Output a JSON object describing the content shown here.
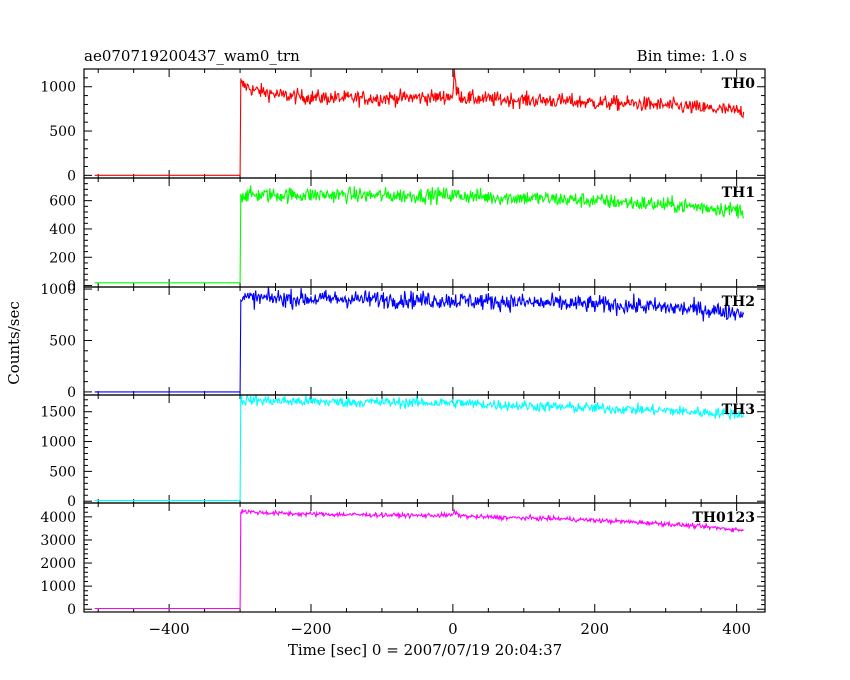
{
  "header": {
    "left": "ae070719200437_wam0_trn",
    "right": "Bin time: 1.0 s"
  },
  "y_axis_label": "Counts/sec",
  "chart_data": {
    "type": "line",
    "xlabel": "Time [sec] 0 = 2007/07/19 20:04:37",
    "xlim": [
      -520,
      440
    ],
    "x_ticks": [
      -400,
      -200,
      0,
      200,
      400
    ],
    "x_tick_labels": [
      "−400",
      "−200",
      "0",
      "200",
      "400"
    ],
    "panels": [
      {
        "name": "TH0",
        "color": "#ff0000",
        "ylim": [
          -30,
          1200
        ],
        "yticks": [
          0,
          500,
          1000
        ],
        "ytick_labels": [
          "0",
          "500",
          "1000"
        ],
        "series": [
          {
            "name": "TH0",
            "x": [
              -505,
              -300,
              -299,
              -298,
              -290,
              -280,
              -260,
              -240,
              -200,
              -150,
              -100,
              -50,
              -20,
              0,
              2,
              5,
              10,
              20,
              50,
              100,
              150,
              200,
              250,
              300,
              350,
              380,
              410
            ],
            "y": [
              0,
              0,
              1050,
              1020,
              1000,
              960,
              930,
              900,
              880,
              870,
              870,
              880,
              880,
              900,
              1180,
              960,
              900,
              870,
              860,
              850,
              840,
              820,
              810,
              790,
              760,
              740,
              720
            ]
          }
        ]
      },
      {
        "name": "TH1",
        "color": "#00ff00",
        "ylim": [
          -10,
          760
        ],
        "yticks": [
          0,
          200,
          400,
          600
        ],
        "ytick_labels": [
          "0",
          "200",
          "400",
          "600"
        ],
        "series": [
          {
            "name": "TH1",
            "x": [
              -505,
              -300,
              -299,
              -280,
              -250,
              -200,
              -150,
              -100,
              -50,
              0,
              50,
              100,
              150,
              200,
              250,
              300,
              350,
              410
            ],
            "y": [
              20,
              20,
              640,
              640,
              640,
              640,
              640,
              635,
              635,
              640,
              625,
              620,
              610,
              600,
              585,
              570,
              555,
              530
            ]
          }
        ]
      },
      {
        "name": "TH2",
        "color": "#0000ff",
        "ylim": [
          -30,
          1020
        ],
        "yticks": [
          0,
          500,
          1000
        ],
        "ytick_labels": [
          "0",
          "500",
          "1000"
        ],
        "series": [
          {
            "name": "TH2",
            "x": [
              -505,
              -300,
              -299,
              -280,
              -250,
              -200,
              -150,
              -100,
              -50,
              0,
              50,
              100,
              150,
              200,
              250,
              300,
              350,
              410
            ],
            "y": [
              0,
              0,
              910,
              910,
              910,
              905,
              905,
              900,
              895,
              890,
              880,
              870,
              860,
              850,
              840,
              820,
              800,
              770
            ]
          }
        ]
      },
      {
        "name": "TH3",
        "color": "#00ffff",
        "ylim": [
          -30,
          1780
        ],
        "yticks": [
          0,
          500,
          1000,
          1500
        ],
        "ytick_labels": [
          "0",
          "500",
          "1000",
          "1500"
        ],
        "series": [
          {
            "name": "TH3",
            "x": [
              -505,
              -300,
              -299,
              -280,
              -250,
              -200,
              -150,
              -100,
              -50,
              0,
              50,
              100,
              150,
              200,
              250,
              300,
              350,
              410
            ],
            "y": [
              10,
              10,
              1700,
              1690,
              1680,
              1670,
              1660,
              1660,
              1650,
              1650,
              1620,
              1600,
              1580,
              1560,
              1540,
              1520,
              1490,
              1460
            ]
          }
        ]
      },
      {
        "name": "TH0123",
        "color": "#ff00ff",
        "ylim": [
          -120,
          4600
        ],
        "yticks": [
          0,
          1000,
          2000,
          3000,
          4000
        ],
        "ytick_labels": [
          "0",
          "1000",
          "2000",
          "3000",
          "4000"
        ],
        "series": [
          {
            "name": "TH0123",
            "x": [
              -505,
              -300,
              -299,
              -280,
              -250,
              -200,
              -150,
              -100,
              -50,
              0,
              2,
              5,
              20,
              50,
              100,
              150,
              200,
              250,
              300,
              350,
              410
            ],
            "y": [
              30,
              30,
              4250,
              4200,
              4160,
              4120,
              4100,
              4080,
              4060,
              4070,
              4280,
              4100,
              4020,
              3990,
              3950,
              3920,
              3850,
              3780,
              3700,
              3580,
              3420
            ]
          }
        ]
      }
    ],
    "noise": [
      70,
      45,
      70,
      75,
      80
    ]
  }
}
